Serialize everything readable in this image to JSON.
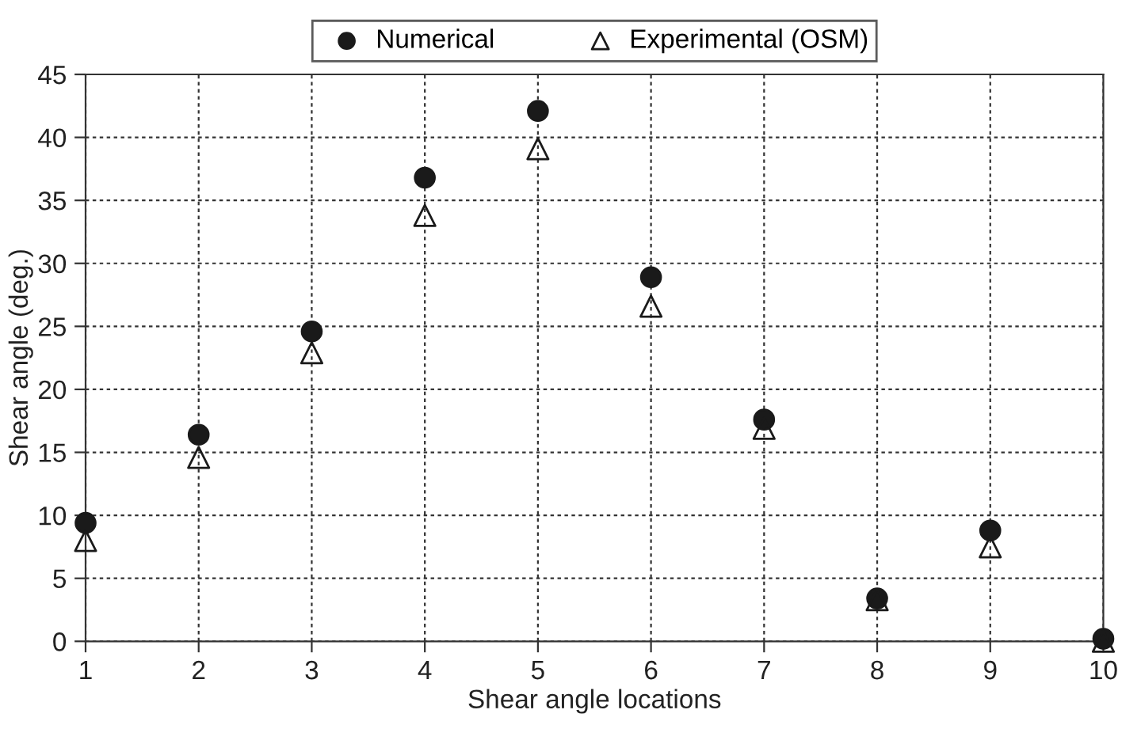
{
  "chart_data": {
    "type": "scatter",
    "xlabel": "Shear angle locations",
    "ylabel": "Shear angle (deg.)",
    "x": [
      1,
      2,
      3,
      4,
      5,
      6,
      7,
      8,
      9,
      10
    ],
    "series": [
      {
        "name": "Numerical",
        "color": "#1a1a1a",
        "marker": "circle",
        "values": [
          9.4,
          16.4,
          24.6,
          36.8,
          42.1,
          28.9,
          17.6,
          3.4,
          8.8,
          0.2
        ]
      },
      {
        "name": "Experimental (OSM)",
        "color": "#1a1a1a",
        "marker": "triangle",
        "values": [
          8.0,
          14.6,
          22.9,
          33.8,
          39.1,
          26.6,
          16.9,
          3.3,
          7.5,
          0.0
        ]
      }
    ],
    "xlim": [
      1,
      10
    ],
    "xticks": [
      1,
      2,
      3,
      4,
      5,
      6,
      7,
      8,
      9,
      10
    ],
    "ylim": [
      0,
      45
    ],
    "yticks": [
      0,
      5,
      10,
      15,
      20,
      25,
      30,
      35,
      40,
      45
    ],
    "grid": true,
    "legend": "top"
  }
}
